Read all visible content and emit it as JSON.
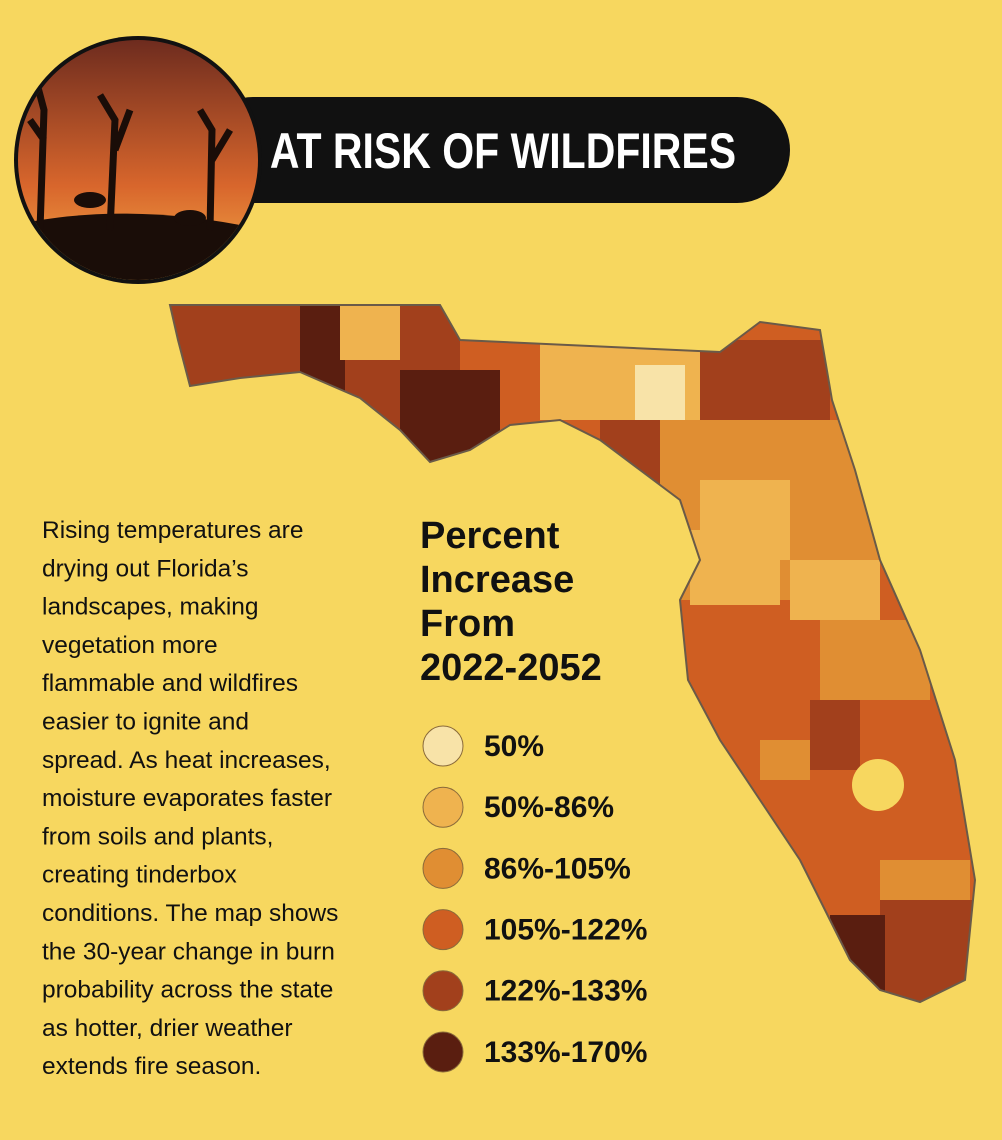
{
  "header": {
    "title": "AT RISK OF WILDFIRES"
  },
  "description": {
    "lines": [
      "Rising temperatures are",
      "drying out Florida’s",
      "landscapes, making",
      "vegetation more",
      "flammable and wildfires",
      "easier to ignite and",
      "spread. As heat increases,",
      "moisture evaporates faster",
      "from soils and plants,",
      "creating tinderbox",
      "conditions. The map shows",
      "the 30-year change in burn",
      "probability across the state",
      "as hotter, drier weather",
      "extends fire season."
    ]
  },
  "legend": {
    "title_lines": [
      "Percent",
      "Increase",
      "From",
      "2022-2052"
    ],
    "items": [
      {
        "label": "50%",
        "color": "#f8e3a8"
      },
      {
        "label": "50%-86%",
        "color": "#efb34f"
      },
      {
        "label": "86%-105%",
        "color": "#e08e33"
      },
      {
        "label": "105%-122%",
        "color": "#cf5e22"
      },
      {
        "label": "122%-133%",
        "color": "#a2401c"
      },
      {
        "label": "133%-170%",
        "color": "#5a1e10"
      }
    ]
  }
}
